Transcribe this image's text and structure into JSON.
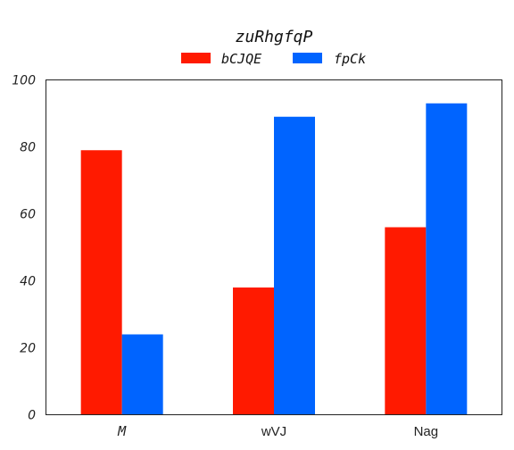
{
  "chart_data": {
    "type": "bar",
    "title": "zuRhgfqP",
    "categories": [
      "M",
      "wVJ",
      "Nag"
    ],
    "series": [
      {
        "name": "bCJQE",
        "values": [
          79,
          38,
          56
        ],
        "color": "#ff1a00"
      },
      {
        "name": "fpCk",
        "values": [
          24,
          89,
          93
        ],
        "color": "#0064ff"
      }
    ],
    "xlabel": "",
    "ylabel": "",
    "ylim": [
      0,
      100
    ],
    "yticks": [
      0,
      20,
      40,
      60,
      80,
      100
    ],
    "grid": false,
    "legend": "top-center"
  }
}
